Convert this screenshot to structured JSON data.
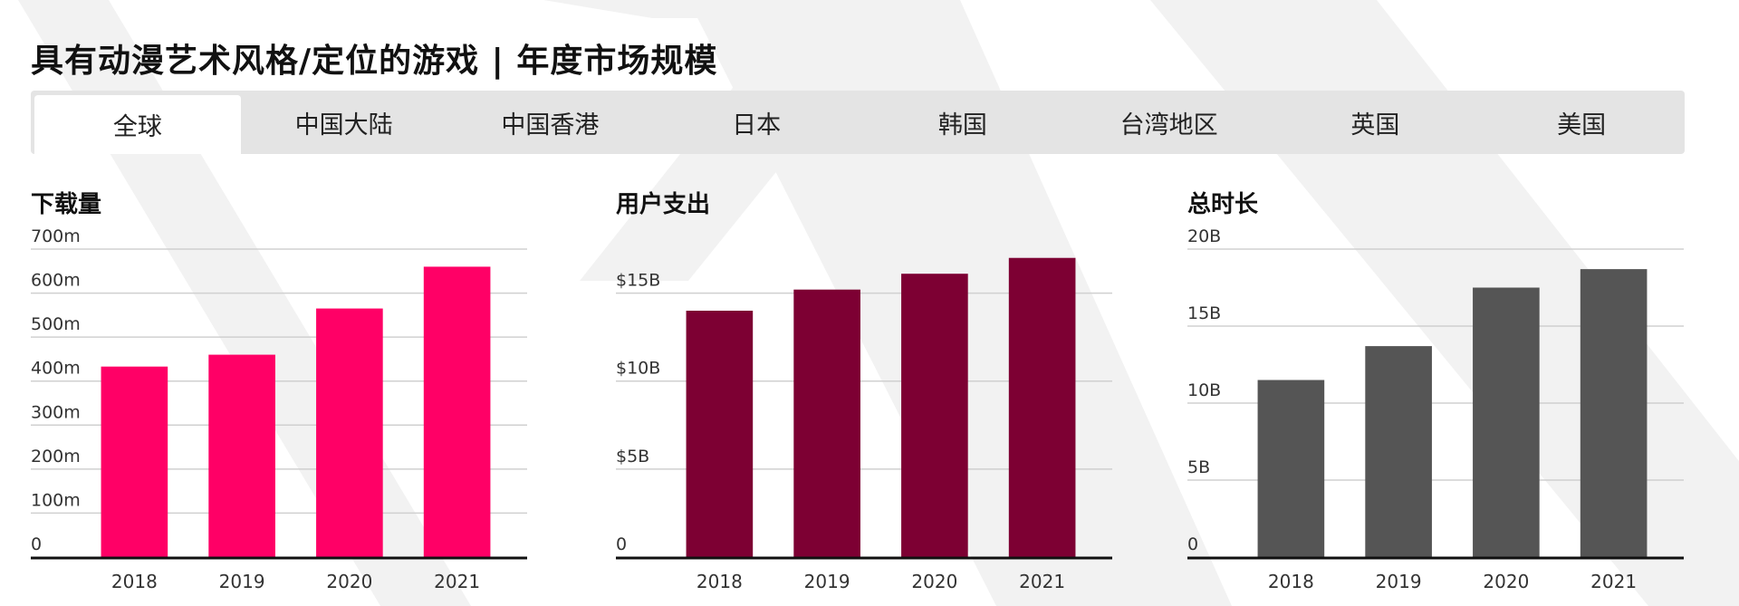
{
  "page": {
    "title": "具有动漫艺术风格/定位的游戏 | 年度市场规模"
  },
  "tabs": [
    {
      "label": "全球",
      "active": true
    },
    {
      "label": "中国大陆",
      "active": false
    },
    {
      "label": "中国香港",
      "active": false
    },
    {
      "label": "日本",
      "active": false
    },
    {
      "label": "韩国",
      "active": false
    },
    {
      "label": "台湾地区",
      "active": false
    },
    {
      "label": "英国",
      "active": false
    },
    {
      "label": "美国",
      "active": false
    }
  ],
  "colors": {
    "downloads": "#ff0066",
    "spending": "#7d0033",
    "time": "#555555",
    "grid": "#d0d0d0",
    "axis": "#111111"
  },
  "chart_data": [
    {
      "type": "bar",
      "title": "下载量",
      "categories": [
        "2018",
        "2019",
        "2020",
        "2021"
      ],
      "values": [
        433,
        460,
        565,
        660
      ],
      "ylim": [
        0,
        700
      ],
      "yticks": [
        0,
        100,
        200,
        300,
        400,
        500,
        600,
        700
      ],
      "ytick_labels": [
        "0",
        "100m",
        "200m",
        "300m",
        "400m",
        "500m",
        "600m",
        "700m"
      ],
      "grid": true
    },
    {
      "type": "bar",
      "title": "用户支出",
      "categories": [
        "2018",
        "2019",
        "2020",
        "2021"
      ],
      "values": [
        14.0,
        15.2,
        16.1,
        17.0
      ],
      "ylim": [
        0,
        17.5
      ],
      "yticks": [
        0,
        5,
        10,
        15
      ],
      "ytick_labels": [
        "0",
        "$5B",
        "$10B",
        "$15B"
      ],
      "grid": true
    },
    {
      "type": "bar",
      "title": "总时长",
      "categories": [
        "2018",
        "2019",
        "2020",
        "2021"
      ],
      "values": [
        11.5,
        13.7,
        17.5,
        18.7
      ],
      "ylim": [
        0,
        20
      ],
      "yticks": [
        0,
        5,
        10,
        15,
        20
      ],
      "ytick_labels": [
        "0",
        "5B",
        "10B",
        "15B",
        "20B"
      ],
      "grid": true
    }
  ]
}
